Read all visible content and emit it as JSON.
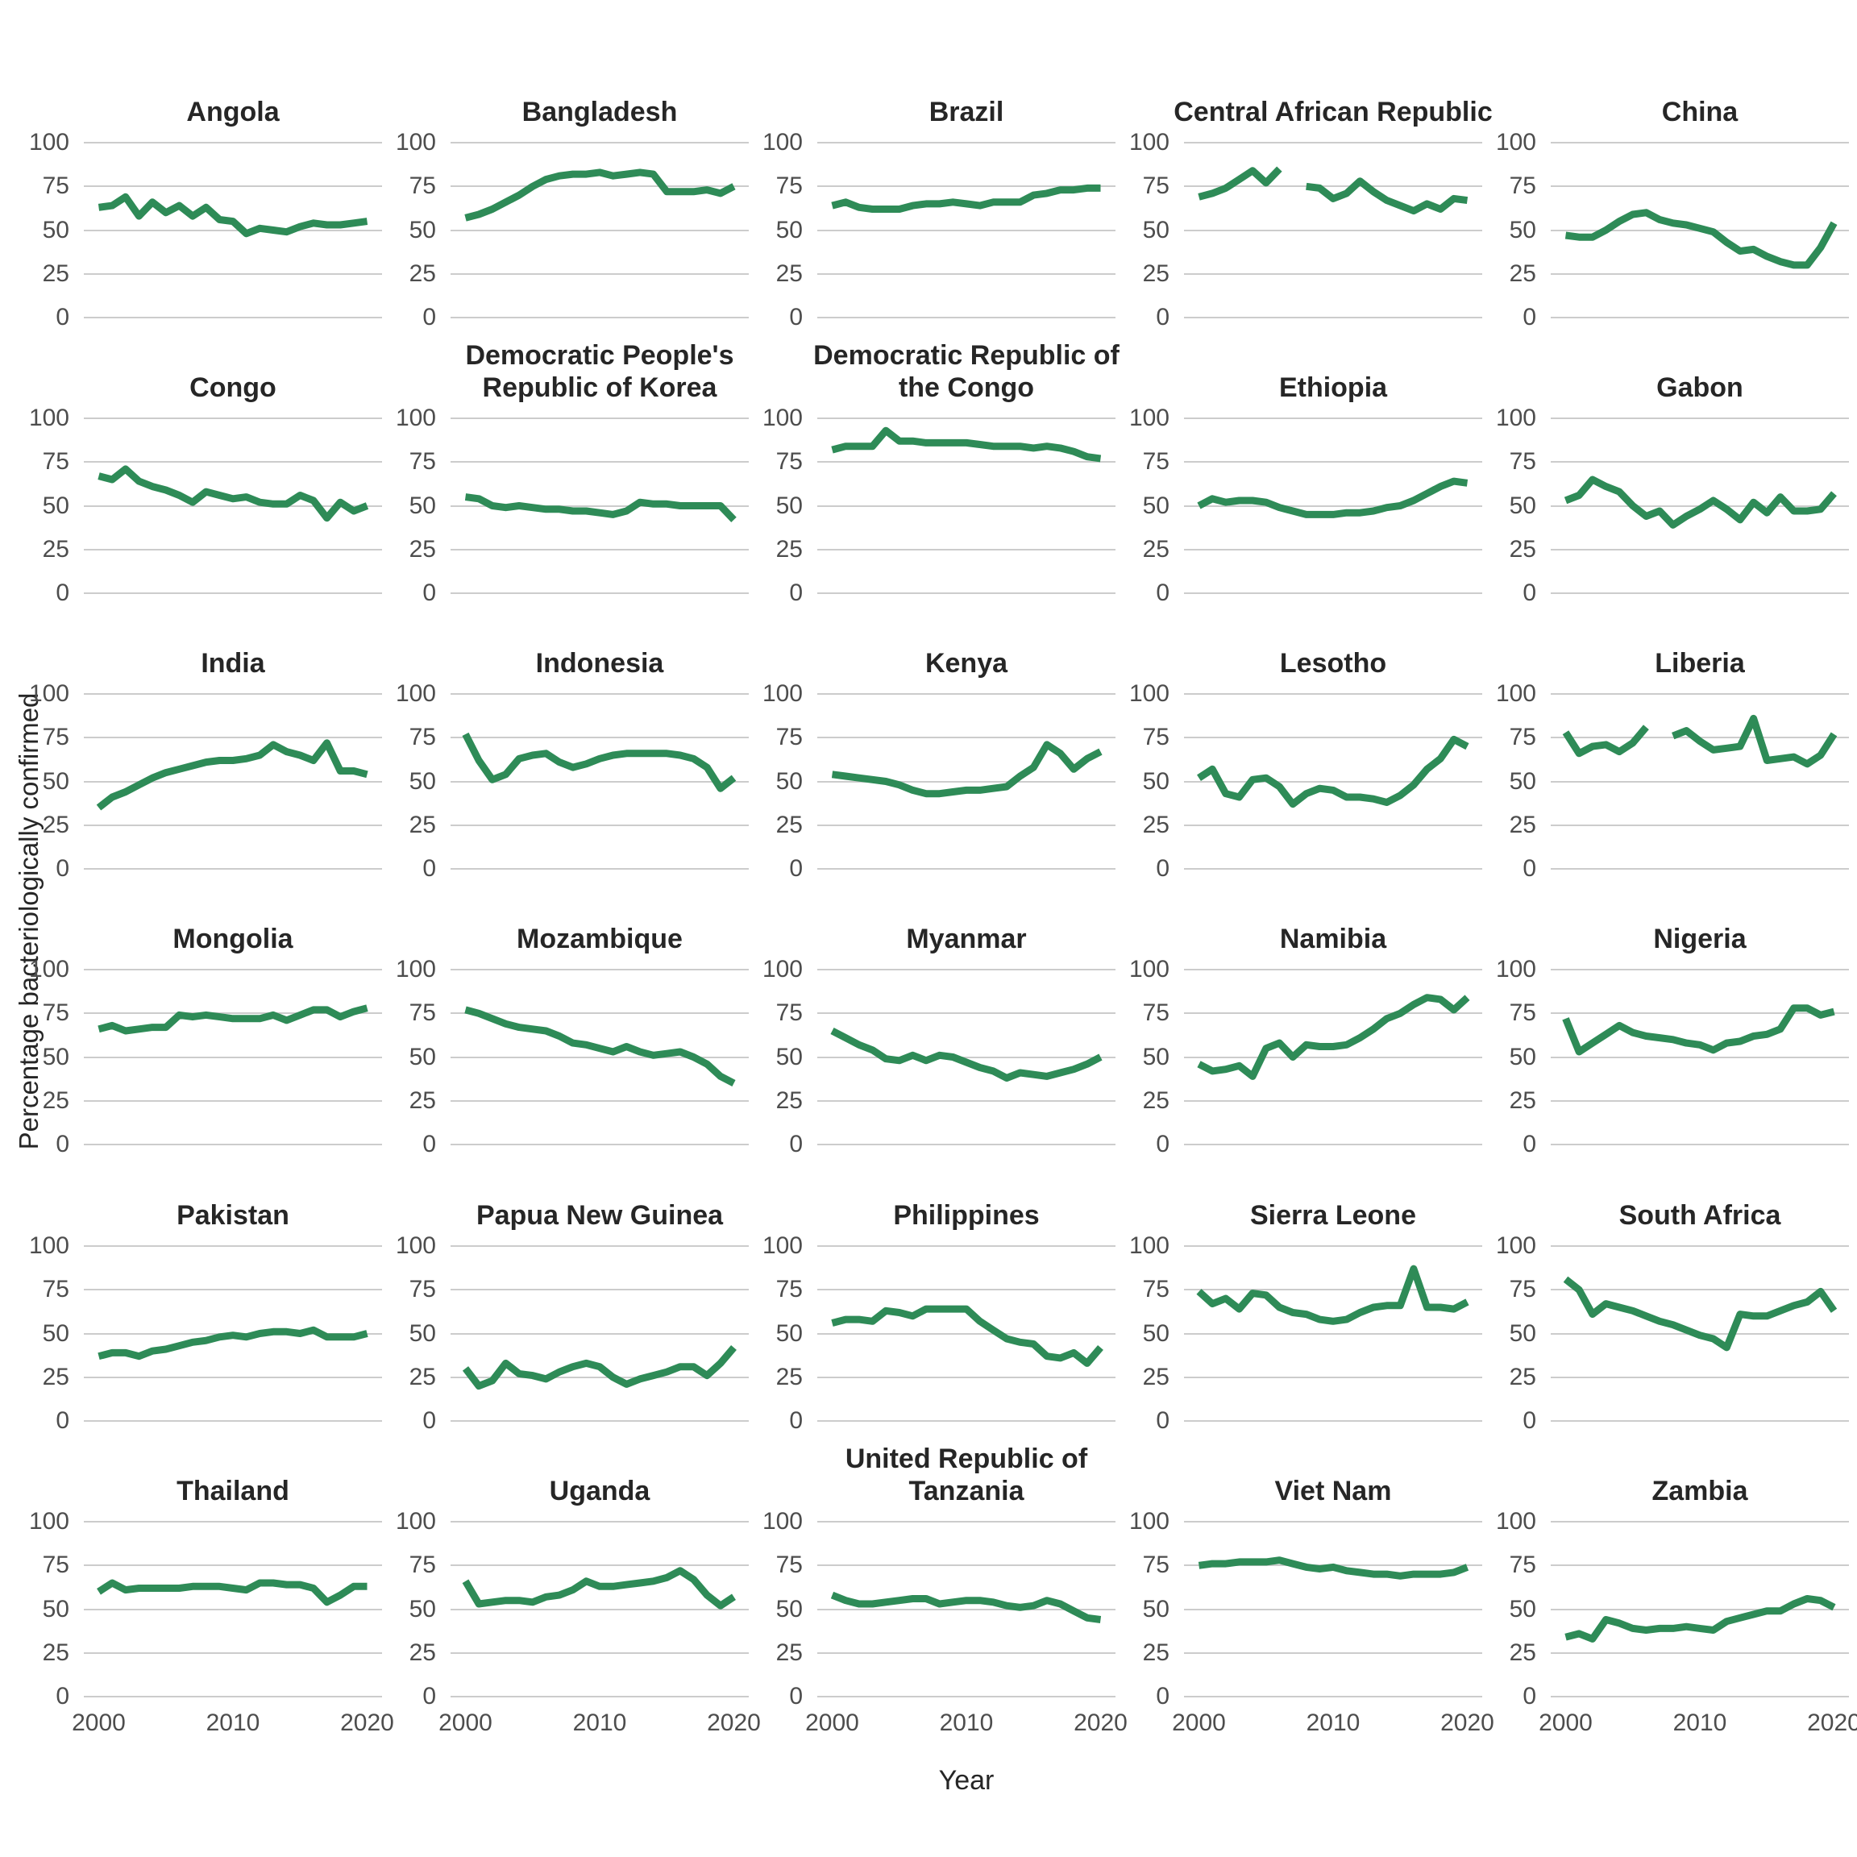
{
  "chart_data": {
    "type": "line",
    "title": "",
    "xlabel": "Year",
    "ylabel": "Percentage bacteriologically confirmed",
    "x": [
      2000,
      2001,
      2002,
      2003,
      2004,
      2005,
      2006,
      2007,
      2008,
      2009,
      2010,
      2011,
      2012,
      2013,
      2014,
      2015,
      2016,
      2017,
      2018,
      2019,
      2020
    ],
    "x_ticks": [
      2000,
      2010,
      2020
    ],
    "y_ticks": [
      0,
      25,
      50,
      75,
      100
    ],
    "ylim": [
      0,
      100
    ],
    "grid": "horizontal-only",
    "legend": "none",
    "line_color": "#2e8b57",
    "grid_color": "#cccccc",
    "title_color": "#262626",
    "tick_label_color": "#4d4d4d",
    "facets": [
      {
        "name": "Angola",
        "values": [
          63,
          64,
          69,
          58,
          66,
          60,
          64,
          58,
          63,
          56,
          55,
          48,
          51,
          50,
          49,
          52,
          54,
          53,
          53,
          54,
          55
        ]
      },
      {
        "name": "Bangladesh",
        "values": [
          57,
          59,
          62,
          66,
          70,
          75,
          79,
          81,
          82,
          82,
          83,
          81,
          82,
          83,
          82,
          72,
          72,
          72,
          73,
          71,
          75
        ]
      },
      {
        "name": "Brazil",
        "values": [
          64,
          66,
          63,
          62,
          62,
          62,
          64,
          65,
          65,
          66,
          65,
          64,
          66,
          66,
          66,
          70,
          71,
          73,
          73,
          74,
          74
        ]
      },
      {
        "name": "Central African Republic",
        "values": [
          69,
          71,
          74,
          79,
          84,
          77,
          85,
          null,
          75,
          74,
          68,
          71,
          78,
          72,
          67,
          64,
          61,
          65,
          62,
          68,
          67
        ]
      },
      {
        "name": "China",
        "values": [
          47,
          46,
          46,
          50,
          55,
          59,
          60,
          56,
          54,
          53,
          51,
          49,
          43,
          38,
          39,
          35,
          32,
          30,
          30,
          40,
          54
        ]
      },
      {
        "name": "Congo",
        "values": [
          67,
          65,
          71,
          64,
          61,
          59,
          56,
          52,
          58,
          56,
          54,
          55,
          52,
          51,
          51,
          56,
          53,
          43,
          52,
          47,
          50
        ]
      },
      {
        "name": "Democratic People's Republic of Korea",
        "values": [
          55,
          54,
          50,
          49,
          50,
          49,
          48,
          48,
          47,
          47,
          46,
          45,
          47,
          52,
          51,
          51,
          50,
          50,
          50,
          50,
          42
        ]
      },
      {
        "name": "Democratic Republic of the Congo",
        "values": [
          82,
          84,
          84,
          84,
          93,
          87,
          87,
          86,
          86,
          86,
          86,
          85,
          84,
          84,
          84,
          83,
          84,
          83,
          81,
          78,
          77
        ]
      },
      {
        "name": "Ethiopia",
        "values": [
          50,
          54,
          52,
          53,
          53,
          52,
          49,
          47,
          45,
          45,
          45,
          46,
          46,
          47,
          49,
          50,
          53,
          57,
          61,
          64,
          63
        ]
      },
      {
        "name": "Gabon",
        "values": [
          53,
          56,
          65,
          61,
          58,
          50,
          44,
          47,
          39,
          44,
          48,
          53,
          48,
          42,
          52,
          46,
          55,
          47,
          47,
          48,
          57
        ]
      },
      {
        "name": "India",
        "values": [
          35,
          41,
          44,
          48,
          52,
          55,
          57,
          59,
          61,
          62,
          62,
          63,
          65,
          71,
          67,
          65,
          62,
          72,
          56,
          56,
          54
        ]
      },
      {
        "name": "Indonesia",
        "values": [
          77,
          62,
          51,
          54,
          63,
          65,
          66,
          61,
          58,
          60,
          63,
          65,
          66,
          66,
          66,
          66,
          65,
          63,
          58,
          46,
          52
        ]
      },
      {
        "name": "Kenya",
        "values": [
          54,
          53,
          52,
          51,
          50,
          48,
          45,
          43,
          43,
          44,
          45,
          45,
          46,
          47,
          53,
          58,
          71,
          66,
          57,
          63,
          67
        ]
      },
      {
        "name": "Lesotho",
        "values": [
          52,
          57,
          43,
          41,
          51,
          52,
          47,
          37,
          43,
          46,
          45,
          41,
          41,
          40,
          38,
          42,
          48,
          57,
          63,
          74,
          70
        ]
      },
      {
        "name": "Liberia",
        "values": [
          78,
          66,
          70,
          71,
          67,
          72,
          81,
          null,
          76,
          79,
          73,
          68,
          69,
          70,
          86,
          62,
          63,
          64,
          60,
          65,
          77
        ]
      },
      {
        "name": "Mongolia",
        "values": [
          66,
          68,
          65,
          66,
          67,
          67,
          74,
          73,
          74,
          73,
          72,
          72,
          72,
          74,
          71,
          74,
          77,
          77,
          73,
          76,
          78
        ]
      },
      {
        "name": "Mozambique",
        "values": [
          77,
          75,
          72,
          69,
          67,
          66,
          65,
          62,
          58,
          57,
          55,
          53,
          56,
          53,
          51,
          52,
          53,
          50,
          46,
          39,
          35
        ]
      },
      {
        "name": "Myanmar",
        "values": [
          65,
          61,
          57,
          54,
          49,
          48,
          51,
          48,
          51,
          50,
          47,
          44,
          42,
          38,
          41,
          40,
          39,
          41,
          43,
          46,
          50
        ]
      },
      {
        "name": "Namibia",
        "values": [
          46,
          42,
          43,
          45,
          39,
          55,
          58,
          50,
          57,
          56,
          56,
          57,
          61,
          66,
          72,
          75,
          80,
          84,
          83,
          77,
          84
        ]
      },
      {
        "name": "Nigeria",
        "values": [
          72,
          53,
          58,
          63,
          68,
          64,
          62,
          61,
          60,
          58,
          57,
          54,
          58,
          59,
          62,
          63,
          66,
          78,
          78,
          74,
          76
        ]
      },
      {
        "name": "Pakistan",
        "values": [
          37,
          39,
          39,
          37,
          40,
          41,
          43,
          45,
          46,
          48,
          49,
          48,
          50,
          51,
          51,
          50,
          52,
          48,
          48,
          48,
          50
        ]
      },
      {
        "name": "Papua New Guinea",
        "values": [
          30,
          20,
          23,
          33,
          27,
          26,
          24,
          28,
          31,
          33,
          31,
          25,
          21,
          24,
          26,
          28,
          31,
          31,
          26,
          33,
          42
        ]
      },
      {
        "name": "Philippines",
        "values": [
          56,
          58,
          58,
          57,
          63,
          62,
          60,
          64,
          64,
          64,
          64,
          57,
          52,
          47,
          45,
          44,
          37,
          36,
          39,
          33,
          42
        ]
      },
      {
        "name": "Sierra Leone",
        "values": [
          74,
          67,
          70,
          64,
          73,
          72,
          65,
          62,
          61,
          58,
          57,
          58,
          62,
          65,
          66,
          66,
          87,
          65,
          65,
          64,
          68
        ]
      },
      {
        "name": "South Africa",
        "values": [
          81,
          75,
          61,
          67,
          65,
          63,
          60,
          57,
          55,
          52,
          49,
          47,
          42,
          61,
          60,
          60,
          63,
          66,
          68,
          74,
          63
        ]
      },
      {
        "name": "Thailand",
        "values": [
          60,
          65,
          61,
          62,
          62,
          62,
          62,
          63,
          63,
          63,
          62,
          61,
          65,
          65,
          64,
          64,
          62,
          54,
          58,
          63,
          63
        ]
      },
      {
        "name": "Uganda",
        "values": [
          66,
          53,
          54,
          55,
          55,
          54,
          57,
          58,
          61,
          66,
          63,
          63,
          64,
          65,
          66,
          68,
          72,
          67,
          58,
          52,
          57
        ]
      },
      {
        "name": "United Republic of Tanzania",
        "values": [
          58,
          55,
          53,
          53,
          54,
          55,
          56,
          56,
          53,
          54,
          55,
          55,
          54,
          52,
          51,
          52,
          55,
          53,
          49,
          45,
          44
        ]
      },
      {
        "name": "Viet Nam",
        "values": [
          75,
          76,
          76,
          77,
          77,
          77,
          78,
          76,
          74,
          73,
          74,
          72,
          71,
          70,
          70,
          69,
          70,
          70,
          70,
          71,
          74
        ]
      },
      {
        "name": "Zambia",
        "values": [
          34,
          36,
          33,
          44,
          42,
          39,
          38,
          39,
          39,
          40,
          39,
          38,
          43,
          45,
          47,
          49,
          49,
          53,
          56,
          55,
          51
        ]
      }
    ]
  }
}
